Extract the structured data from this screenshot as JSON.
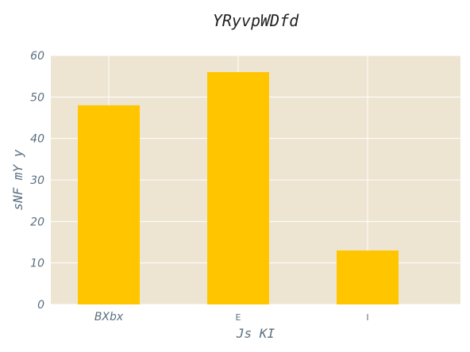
{
  "chart_data": {
    "type": "bar",
    "title": "YRyvpWDfd",
    "xlabel": "Js KI",
    "ylabel": "sNF mY y",
    "categories": [
      "BXbx",
      "E",
      "I"
    ],
    "values": [
      48,
      56,
      13
    ],
    "ylim": [
      0,
      60
    ],
    "yticks": [
      0,
      10,
      20,
      30,
      40,
      50,
      60
    ],
    "grid": true,
    "colors": {
      "bar": "#ffc600",
      "plot_background": "#ede5d2",
      "grid": "#ffffff"
    }
  }
}
